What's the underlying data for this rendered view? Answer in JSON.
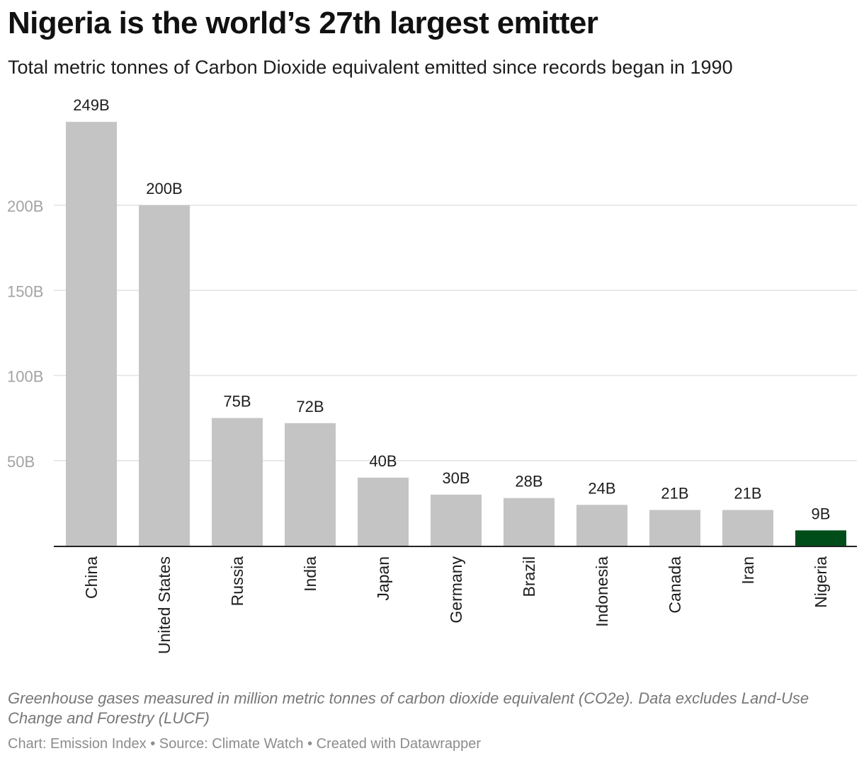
{
  "header": {
    "title": "Nigeria is the world’s 27th largest emitter",
    "subtitle": "Total metric tonnes of Carbon Dioxide equivalent emitted since records began in 1990"
  },
  "footer": {
    "notes": "Greenhouse gases measured in million metric tonnes of carbon dioxide equivalent (CO2e). Data excludes Land-Use Change and Forestry (LUCF)",
    "chart_by": "Chart: Emission Index",
    "source": "Source: Climate Watch",
    "tool": "Created with Datawrapper",
    "separator": " • "
  },
  "chart_data": {
    "type": "bar",
    "title": "Nigeria is the world’s 27th largest emitter",
    "subtitle": "Total metric tonnes of Carbon Dioxide equivalent emitted since records began in 1990",
    "xlabel": "",
    "ylabel": "",
    "ylim": [
      0,
      260
    ],
    "grid": true,
    "categories": [
      "China",
      "United States",
      "Russia",
      "India",
      "Japan",
      "Germany",
      "Brazil",
      "Indonesia",
      "Canada",
      "Iran",
      "Nigeria"
    ],
    "values": [
      249,
      200,
      75,
      72,
      40,
      30,
      28,
      24,
      21,
      21,
      9
    ],
    "value_labels": [
      "249B",
      "200B",
      "75B",
      "72B",
      "40B",
      "30B",
      "28B",
      "24B",
      "21B",
      "21B",
      "9B"
    ],
    "yticks": [
      {
        "value": 50,
        "label": "50B"
      },
      {
        "value": 100,
        "label": "100B"
      },
      {
        "value": 150,
        "label": "150B"
      },
      {
        "value": 200,
        "label": "200B"
      }
    ],
    "colors": {
      "default": "#c4c4c4",
      "highlight": "#004d1a",
      "highlight_category": "Nigeria",
      "grid": "#e2e2e2",
      "axis": "#222222",
      "tick_label": "#a3a3a3",
      "value_label": "#1d1d1d",
      "category_label": "#1d1d1d"
    }
  }
}
